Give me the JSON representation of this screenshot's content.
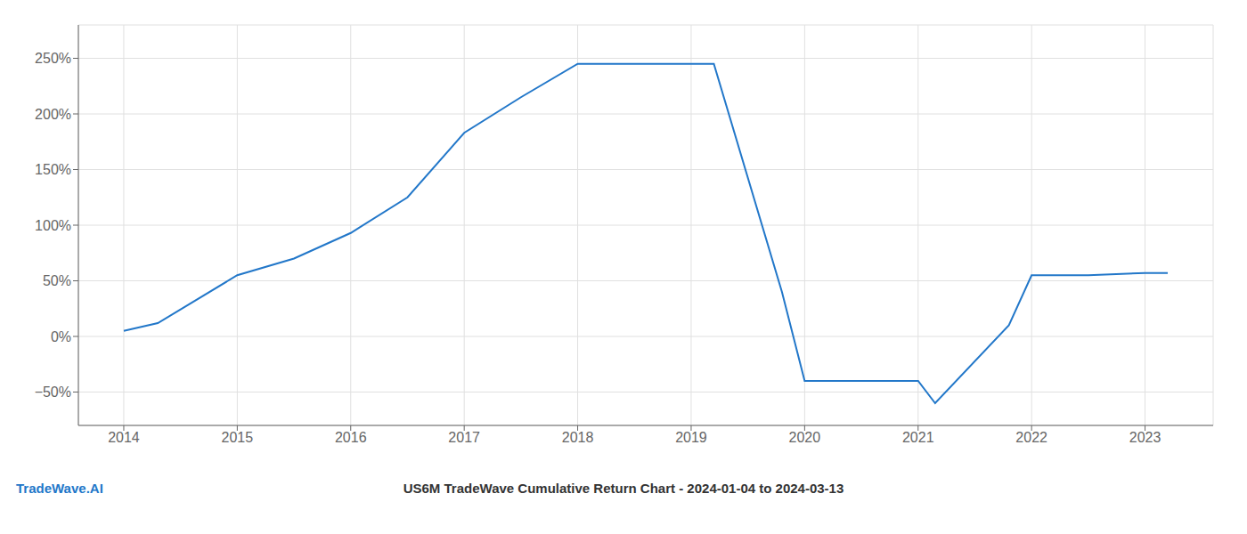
{
  "chart_data": {
    "type": "line",
    "title": "US6M TradeWave Cumulative Return Chart - 2024-01-04 to 2024-03-13",
    "annotations": [
      "TradeWave.AI"
    ],
    "x": [
      2014.0,
      2014.3,
      2015.0,
      2015.5,
      2016.0,
      2016.5,
      2017.0,
      2017.5,
      2018.0,
      2018.2,
      2019.0,
      2019.2,
      2019.8,
      2020.0,
      2020.5,
      2021.0,
      2021.15,
      2021.8,
      2022.0,
      2022.5,
      2023.0,
      2023.2
    ],
    "values": [
      5,
      12,
      55,
      70,
      93,
      125,
      183,
      215,
      245,
      245,
      245,
      245,
      40,
      -40,
      -40,
      -40,
      -60,
      10,
      55,
      55,
      57,
      57
    ],
    "color": "#2277c9",
    "xlim": [
      2013.6,
      2023.6
    ],
    "xticks": [
      2014,
      2015,
      2016,
      2017,
      2018,
      2019,
      2020,
      2021,
      2022,
      2023
    ],
    "ylim": [
      -80,
      280
    ],
    "yticks": [
      {
        "value": -50,
        "label": "−50%"
      },
      {
        "value": 0,
        "label": "0%"
      },
      {
        "value": 50,
        "label": "50%"
      },
      {
        "value": 100,
        "label": "100%"
      },
      {
        "value": 150,
        "label": "150%"
      },
      {
        "value": 200,
        "label": "200%"
      },
      {
        "value": 250,
        "label": "250%"
      }
    ],
    "grid": true
  }
}
